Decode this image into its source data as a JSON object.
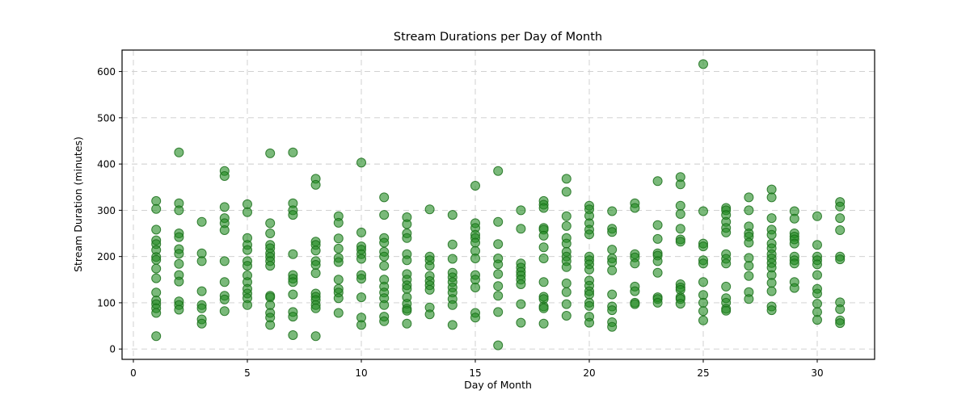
{
  "figure": {
    "background": "#ffffff",
    "plot_background": "#ffffff",
    "spine_color": "#000000",
    "grid_color": "#cccccc"
  },
  "chart_data": {
    "type": "scatter",
    "title": "Stream Durations per Day of Month",
    "xlabel": "Day of Month",
    "ylabel": "Stream Duration (minutes)",
    "xlim": [
      -0.5,
      32.5
    ],
    "ylim": [
      -22,
      646
    ],
    "xticks": [
      0,
      5,
      10,
      15,
      20,
      25,
      30
    ],
    "yticks": [
      0,
      100,
      200,
      300,
      400,
      500,
      600
    ],
    "grid": true,
    "grid_style": "dashed",
    "legend": "none",
    "marker": {
      "shape": "circle",
      "color": "#228B22",
      "edge_color": "#1a6e1a",
      "opacity": 0.6,
      "radius_px": 5.5
    },
    "points": [
      {
        "day": 1,
        "values": [
          320,
          303,
          258,
          235,
          227,
          214,
          199,
          193,
          174,
          153,
          122,
          105,
          97,
          88,
          78,
          28
        ]
      },
      {
        "day": 2,
        "values": [
          425,
          315,
          300,
          250,
          242,
          216,
          206,
          184,
          160,
          146,
          103,
          95,
          85
        ]
      },
      {
        "day": 3,
        "values": [
          275,
          207,
          190,
          125,
          95,
          88,
          64,
          55
        ]
      },
      {
        "day": 4,
        "values": [
          385,
          374,
          307,
          283,
          272,
          257,
          190,
          145,
          115,
          107,
          82
        ]
      },
      {
        "day": 5,
        "values": [
          313,
          296,
          240,
          225,
          214,
          190,
          180,
          159,
          145,
          130,
          120,
          110,
          95
        ]
      },
      {
        "day": 6,
        "values": [
          423,
          272,
          250,
          225,
          218,
          207,
          199,
          190,
          180,
          115,
          112,
          95,
          78,
          68,
          52
        ]
      },
      {
        "day": 7,
        "values": [
          425,
          315,
          300,
          290,
          205,
          160,
          152,
          145,
          118,
          80,
          70,
          30
        ]
      },
      {
        "day": 8,
        "values": [
          368,
          355,
          232,
          225,
          213,
          190,
          182,
          164,
          120,
          113,
          106,
          95,
          88,
          28
        ]
      },
      {
        "day": 9,
        "values": [
          287,
          273,
          239,
          217,
          197,
          188,
          150,
          130,
          122,
          110,
          78
        ]
      },
      {
        "day": 10,
        "values": [
          403,
          252,
          222,
          215,
          205,
          195,
          160,
          152,
          112,
          68,
          52
        ]
      },
      {
        "day": 11,
        "values": [
          328,
          290,
          240,
          230,
          210,
          200,
          180,
          150,
          135,
          122,
          110,
          95,
          70,
          60
        ]
      },
      {
        "day": 12,
        "values": [
          285,
          270,
          250,
          240,
          205,
          192,
          162,
          150,
          138,
          130,
          112,
          98,
          87,
          83,
          55
        ]
      },
      {
        "day": 13,
        "values": [
          302,
          200,
          192,
          180,
          158,
          147,
          138,
          128,
          90,
          75
        ]
      },
      {
        "day": 14,
        "values": [
          290,
          226,
          195,
          165,
          155,
          145,
          133,
          122,
          108,
          95,
          52
        ]
      },
      {
        "day": 15,
        "values": [
          353,
          272,
          262,
          247,
          240,
          230,
          212,
          196,
          160,
          150,
          133,
          78,
          68
        ]
      },
      {
        "day": 16,
        "values": [
          385,
          275,
          227,
          196,
          183,
          162,
          136,
          115,
          80,
          8
        ]
      },
      {
        "day": 17,
        "values": [
          300,
          260,
          185,
          176,
          167,
          159,
          150,
          140,
          97,
          57
        ]
      },
      {
        "day": 18,
        "values": [
          320,
          312,
          305,
          262,
          258,
          245,
          220,
          196,
          145,
          113,
          108,
          92,
          88,
          55
        ]
      },
      {
        "day": 19,
        "values": [
          368,
          340,
          287,
          266,
          240,
          228,
          210,
          200,
          190,
          177,
          142,
          123,
          97,
          72
        ]
      },
      {
        "day": 20,
        "values": [
          310,
          302,
          288,
          272,
          258,
          248,
          200,
          192,
          183,
          172,
          148,
          137,
          125,
          118,
          100,
          93,
          70,
          57
        ]
      },
      {
        "day": 21,
        "values": [
          298,
          260,
          253,
          215,
          196,
          188,
          170,
          118,
          92,
          84,
          58,
          48
        ]
      },
      {
        "day": 22,
        "values": [
          315,
          305,
          205,
          198,
          185,
          135,
          125,
          100,
          97
        ]
      },
      {
        "day": 23,
        "values": [
          363,
          268,
          238,
          207,
          202,
          190,
          165,
          112,
          108,
          100
        ]
      },
      {
        "day": 24,
        "values": [
          372,
          356,
          310,
          292,
          260,
          237,
          232,
          140,
          133,
          128,
          112,
          108,
          98
        ]
      },
      {
        "day": 25,
        "values": [
          616,
          298,
          228,
          222,
          192,
          185,
          145,
          117,
          100,
          82,
          62
        ]
      },
      {
        "day": 26,
        "values": [
          305,
          300,
          290,
          275,
          262,
          252,
          205,
          195,
          185,
          135,
          110,
          100,
          87,
          83
        ]
      },
      {
        "day": 27,
        "values": [
          328,
          300,
          265,
          250,
          243,
          230,
          197,
          180,
          158,
          123,
          108
        ]
      },
      {
        "day": 28,
        "values": [
          345,
          328,
          283,
          258,
          247,
          228,
          218,
          205,
          196,
          186,
          176,
          160,
          143,
          125,
          92,
          84
        ]
      },
      {
        "day": 29,
        "values": [
          298,
          282,
          250,
          243,
          237,
          228,
          200,
          192,
          185,
          145,
          132
        ]
      },
      {
        "day": 30,
        "values": [
          287,
          225,
          200,
          192,
          183,
          160,
          130,
          120,
          98,
          80,
          63
        ]
      },
      {
        "day": 31,
        "values": [
          318,
          308,
          283,
          257,
          200,
          194,
          101,
          86,
          62,
          56
        ]
      }
    ]
  }
}
